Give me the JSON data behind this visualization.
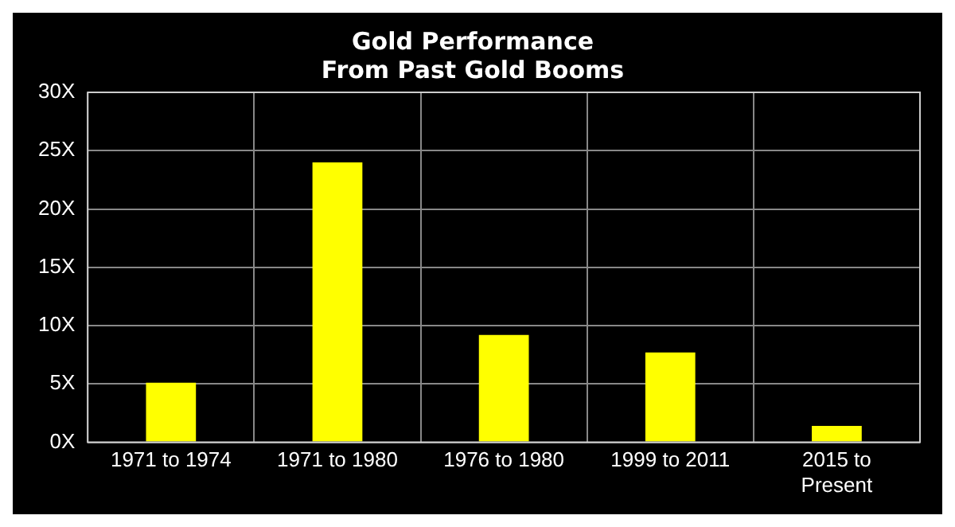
{
  "chart_data": {
    "type": "bar",
    "title": [
      "Gold Performance",
      "From Past Gold Booms"
    ],
    "categories": [
      "1971 to 1974",
      "1971 to 1980",
      "1976 to 1980",
      "1999 to 2011",
      "2015 to Present"
    ],
    "values": [
      5.1,
      24.0,
      9.2,
      7.7,
      1.4
    ],
    "color": "#ffff00",
    "ylim": [
      0,
      30
    ],
    "yticks": [
      {
        "value": 0,
        "label": "0X"
      },
      {
        "value": 5,
        "label": "5X"
      },
      {
        "value": 10,
        "label": "10X"
      },
      {
        "value": 15,
        "label": "15X"
      },
      {
        "value": 20,
        "label": "20X"
      },
      {
        "value": 25,
        "label": "25X"
      },
      {
        "value": 30,
        "label": "30X"
      }
    ],
    "grid": true
  }
}
